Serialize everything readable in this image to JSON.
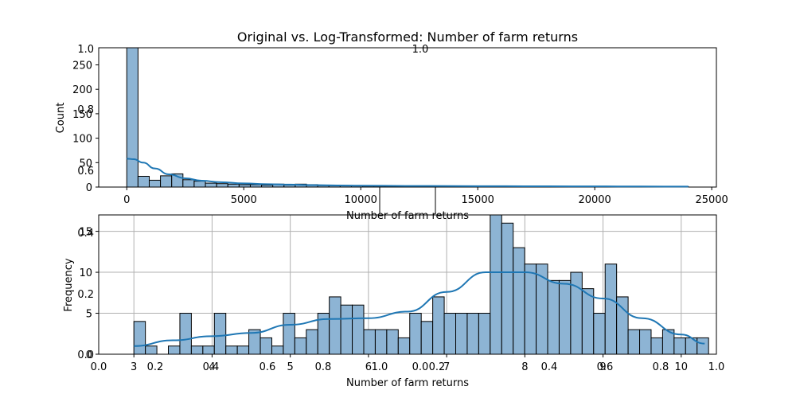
{
  "title": "Original vs. Log-Transformed: Number of farm returns",
  "colors": {
    "bar_fill": "#8db4d4",
    "bar_edge": "#000000",
    "kde_line": "#1f77b4",
    "grid": "#b0b0b0"
  },
  "chart_data": [
    {
      "type": "bar",
      "subtype": "histogram_with_kde",
      "xlabel": "Number of farm returns",
      "ylabel": "Count",
      "xlim": [
        -1200,
        25200
      ],
      "ylim": [
        0,
        285
      ],
      "grid": false,
      "bin_width": 480,
      "bin_start": 0,
      "counts": [
        285,
        22,
        14,
        23,
        27,
        15,
        12,
        8,
        7,
        6,
        5,
        5,
        4,
        6,
        4,
        6,
        5,
        3,
        3,
        3,
        3,
        2,
        2,
        2,
        2,
        2,
        1,
        1,
        1,
        1,
        1,
        1,
        1,
        1,
        1,
        1,
        1,
        1,
        1,
        1,
        1,
        1,
        1,
        1,
        1,
        1,
        1,
        1,
        1,
        1
      ],
      "kde": {
        "x": [
          0,
          300,
          700,
          1200,
          1800,
          2500,
          3200,
          4000,
          5000,
          6000,
          7000,
          8000,
          9000,
          10000,
          12000,
          14000,
          16000,
          18000,
          20000,
          22000,
          24000
        ],
        "y": [
          58,
          57,
          50,
          38,
          26,
          18,
          13,
          10,
          7.5,
          6,
          5,
          4,
          3.2,
          2.8,
          2.3,
          2,
          1.8,
          1.6,
          1.4,
          1.2,
          1
        ]
      },
      "xticks": [
        "0",
        "5000",
        "10000",
        "15000",
        "20000",
        "25000"
      ],
      "yticks": [
        "0",
        "50",
        "100",
        "150",
        "200",
        "250"
      ],
      "stray_axis_ticks": [
        "0.6",
        "0.8",
        "1.0"
      ]
    },
    {
      "type": "bar",
      "subtype": "histogram_with_kde",
      "xlabel": "Number of farm returns",
      "ylabel": "Frequency",
      "xlim": [
        2.55,
        10.45
      ],
      "ylim": [
        0,
        17
      ],
      "grid": true,
      "bin_width": 0.147,
      "bin_start": 3.0,
      "counts": [
        4,
        1,
        0,
        1,
        5,
        1,
        1,
        5,
        1,
        1,
        3,
        2,
        1,
        5,
        2,
        3,
        5,
        7,
        6,
        6,
        3,
        3,
        3,
        2,
        5,
        4,
        7,
        5,
        5,
        5,
        5,
        17,
        16,
        13,
        11,
        11,
        9,
        9,
        10,
        8,
        5,
        11,
        7,
        3,
        3,
        2,
        3,
        2,
        2,
        2
      ],
      "kde": {
        "x": [
          3.0,
          3.5,
          4.0,
          4.5,
          5.0,
          5.5,
          6.0,
          6.5,
          7.0,
          7.5,
          8.0,
          8.5,
          9.0,
          9.5,
          10.0,
          10.3
        ],
        "y": [
          1.0,
          1.7,
          2.2,
          2.6,
          3.6,
          4.3,
          4.4,
          5.2,
          7.6,
          10.0,
          10.0,
          8.6,
          6.8,
          4.4,
          2.4,
          1.3
        ]
      },
      "xticks": [
        "3",
        "4",
        "5",
        "6",
        "7",
        "8",
        "9",
        "10"
      ],
      "yticks": [
        "0",
        "5",
        "10",
        "15"
      ],
      "stray_axis_ticks_x": [
        "0.0",
        "0.2",
        "0.4",
        "0.6",
        "0.8",
        "1.0",
        "0.0",
        "0.2",
        "0.4",
        "0.6",
        "0.8",
        "1.0"
      ],
      "stray_axis_ticks_y": [
        "0.0",
        "0.2",
        "0.4"
      ]
    }
  ]
}
